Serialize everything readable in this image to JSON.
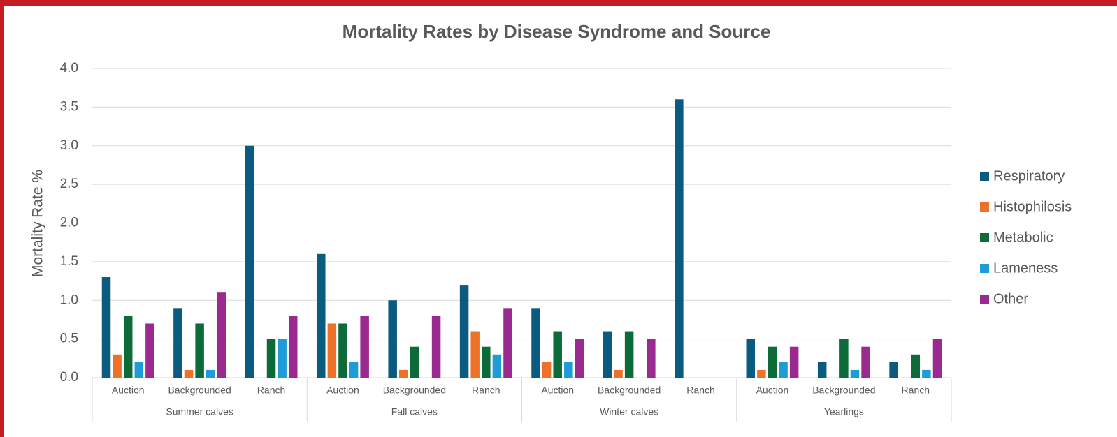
{
  "chart_data": {
    "type": "bar",
    "title": "Mortality Rates by Disease Syndrome and Source",
    "y_label": "Mortality Rate %",
    "categories": [
      "Auction",
      "Backgrounded",
      "Ranch",
      "Auction",
      "Backgrounded",
      "Ranch",
      "Auction",
      "Backgrounded",
      "Ranch",
      "Auction",
      "Backgrounded",
      "Ranch"
    ],
    "category_groups": [
      "Summer calves",
      "Fall calves",
      "Winter calves",
      "Yearlings"
    ],
    "series": [
      {
        "name": "Respiratory",
        "color": "#0b5a80",
        "values": [
          1.3,
          0.9,
          3.0,
          1.6,
          1.0,
          1.2,
          0.9,
          0.6,
          3.6,
          0.5,
          0.2,
          0.2
        ]
      },
      {
        "name": "Histophilosis",
        "color": "#ed7128",
        "values": [
          0.3,
          0.1,
          0,
          0.7,
          0.1,
          0.6,
          0.2,
          0.1,
          0,
          0.1,
          0,
          0
        ]
      },
      {
        "name": "Metabolic",
        "color": "#0d6b3a",
        "values": [
          0.8,
          0.7,
          0.5,
          0.7,
          0.4,
          0.4,
          0.6,
          0.6,
          0,
          0.4,
          0.5,
          0.3
        ]
      },
      {
        "name": "Lameness",
        "color": "#1f9bd7",
        "values": [
          0.2,
          0.1,
          0.5,
          0.2,
          0,
          0.3,
          0.2,
          0,
          0,
          0.2,
          0.1,
          0.1
        ]
      },
      {
        "name": "Other",
        "color": "#9a2a8f",
        "values": [
          0.7,
          1.1,
          0.8,
          0.8,
          0.8,
          0.9,
          0.5,
          0.5,
          0,
          0.4,
          0.4,
          0.5
        ]
      }
    ],
    "ylim": [
      0,
      4
    ],
    "yticks": [
      {
        "value": 0,
        "label": "0.0"
      },
      0.5,
      {
        "value": 1,
        "label": "1.0"
      },
      1.5,
      {
        "value": 2,
        "label": "2.0"
      },
      2.5,
      {
        "value": 3,
        "label": "3.0"
      },
      3.5,
      {
        "value": 4,
        "label": "4.0"
      }
    ],
    "grid": true,
    "legend": "right"
  }
}
